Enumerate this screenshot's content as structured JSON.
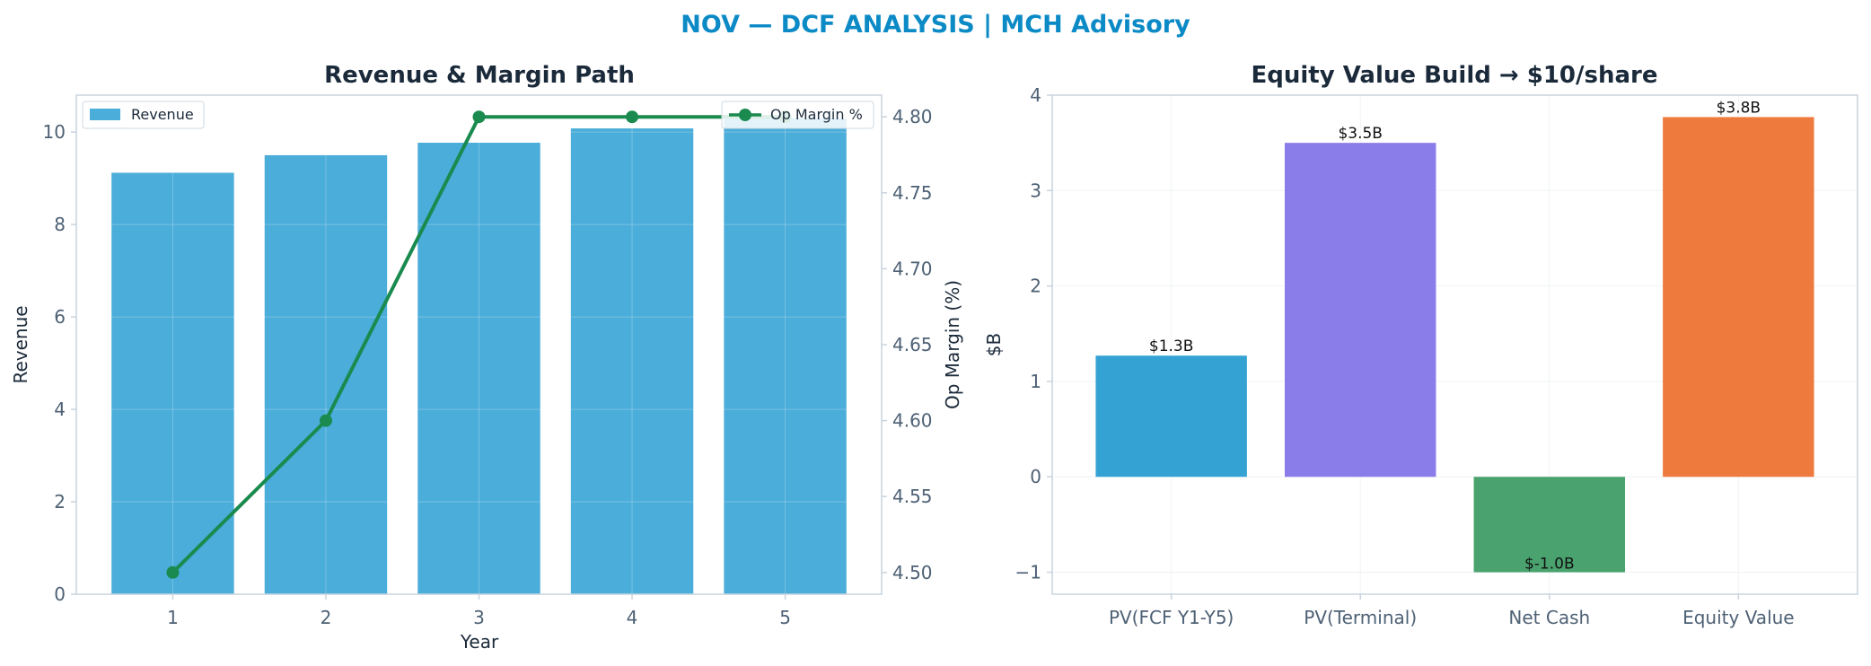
{
  "figure_title": "NOV — DCF ANALYSIS | MCH Advisory",
  "colors": {
    "title": "#0b8ac6",
    "revenue_bar": "#4badd9",
    "margin_line": "#1a8a4f",
    "ev_bars": [
      "#35a2d4",
      "#8a7dea",
      "#4aa36e",
      "#ee7b3d"
    ]
  },
  "chart_data": [
    {
      "type": "bar",
      "title": "Revenue & Margin Path",
      "xlabel": "Year",
      "ylabel": "Revenue",
      "y2label": "Op Margin (%)",
      "categories": [
        "1",
        "2",
        "3",
        "4",
        "5"
      ],
      "ylim": [
        0,
        10.8
      ],
      "yticks": [
        "0",
        "2",
        "4",
        "6",
        "8",
        "10"
      ],
      "y2lim": [
        4.4857,
        4.8143
      ],
      "y2ticks": [
        "4.50",
        "4.55",
        "4.60",
        "4.65",
        "4.70",
        "4.75",
        "4.80"
      ],
      "grid": true,
      "series": [
        {
          "name": "Revenue",
          "type": "bar",
          "axis": "left",
          "values": [
            9.12,
            9.5,
            9.77,
            10.08,
            10.3
          ]
        },
        {
          "name": "Op Margin %",
          "type": "line",
          "axis": "right",
          "values": [
            4.5,
            4.6,
            4.8,
            4.8,
            4.8
          ]
        }
      ],
      "legend": {
        "revenue_position": "upper-left",
        "margin_position": "upper-right"
      }
    },
    {
      "type": "bar",
      "title": "Equity Value Build → $10/share",
      "xlabel": "",
      "ylabel": "$B",
      "categories": [
        "PV(FCF Y1-Y5)",
        "PV(Terminal)",
        "Net Cash",
        "Equity Value"
      ],
      "values": [
        1.27,
        3.5,
        -1.0,
        3.77
      ],
      "data_labels": [
        "$1.3B",
        "$3.5B",
        "$-1.0B",
        "$3.8B"
      ],
      "ylim": [
        -1.23,
        4.0
      ],
      "yticks": [
        "−1",
        "0",
        "1",
        "2",
        "3",
        "4"
      ],
      "grid": true
    }
  ]
}
